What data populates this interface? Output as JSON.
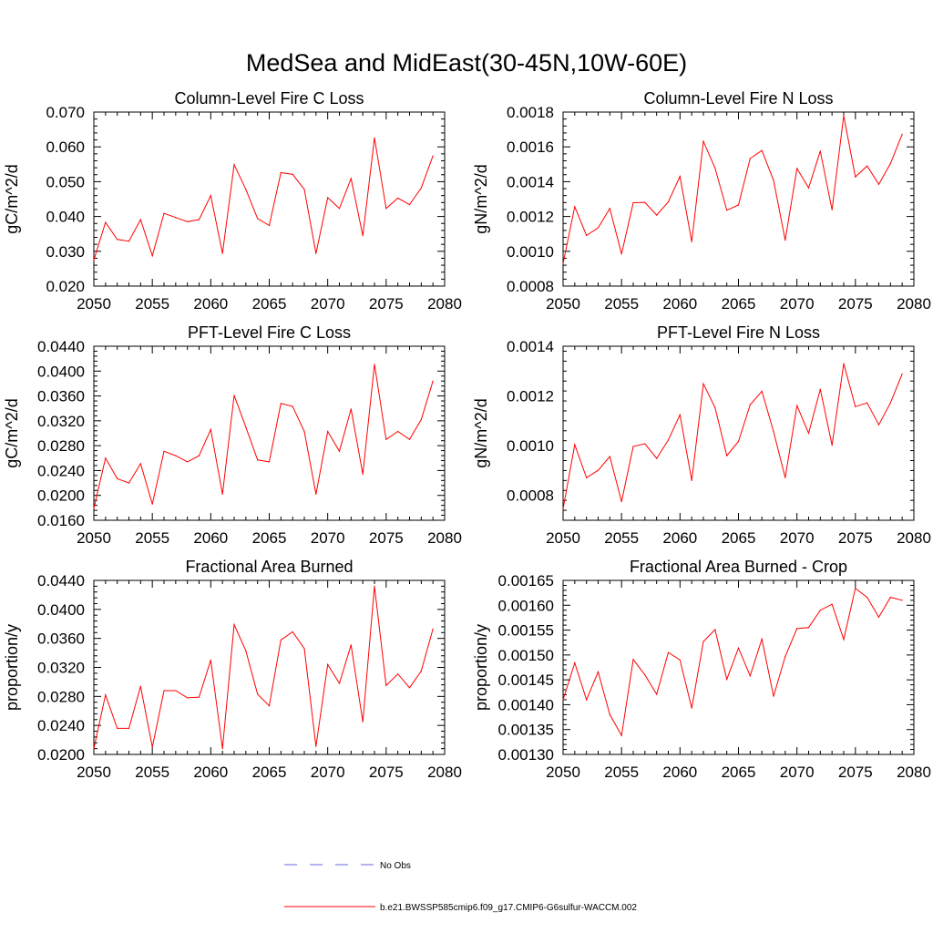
{
  "figure": {
    "title": "MedSea and MidEast(30-45N,10W-60E)"
  },
  "chart_data": [
    {
      "type": "line",
      "title": "Column-Level Fire C Loss",
      "ylabel": "gC/m^2/d",
      "xlabel": "",
      "xlim": [
        2050,
        2080
      ],
      "ylim": [
        0.02,
        0.07
      ],
      "xticks": [
        2050,
        2055,
        2060,
        2065,
        2070,
        2075,
        2080
      ],
      "xtick_labels": [
        "2050",
        "2055",
        "2060",
        "2065",
        "2070",
        "2075",
        "2080"
      ],
      "yticks": [
        0.02,
        0.03,
        0.04,
        0.05,
        0.06,
        0.07
      ],
      "ytick_labels": [
        "0.020",
        "0.030",
        "0.040",
        "0.050",
        "0.060",
        "0.070"
      ],
      "grid": false,
      "x": [
        2050,
        2051,
        2052,
        2053,
        2054,
        2055,
        2056,
        2057,
        2058,
        2059,
        2060,
        2061,
        2062,
        2063,
        2064,
        2065,
        2066,
        2067,
        2068,
        2069,
        2070,
        2071,
        2072,
        2073,
        2074,
        2075,
        2076,
        2077,
        2078,
        2079
      ],
      "series": [
        {
          "values": [
            0.0275,
            0.0383,
            0.0334,
            0.0329,
            0.0391,
            0.0287,
            0.0409,
            0.0397,
            0.0385,
            0.0391,
            0.046,
            0.0294,
            0.0549,
            0.0478,
            0.0394,
            0.0374,
            0.0526,
            0.0521,
            0.0478,
            0.0294,
            0.0454,
            0.0423,
            0.0509,
            0.0345,
            0.0626,
            0.0423,
            0.0453,
            0.0434,
            0.0482,
            0.0574
          ],
          "color": "#ff0000"
        }
      ]
    },
    {
      "type": "line",
      "title": "Column-Level Fire N Loss",
      "ylabel": "gN/m^2/d",
      "xlabel": "",
      "xlim": [
        2050,
        2080
      ],
      "ylim": [
        0.0008,
        0.0018
      ],
      "xticks": [
        2050,
        2055,
        2060,
        2065,
        2070,
        2075,
        2080
      ],
      "xtick_labels": [
        "2050",
        "2055",
        "2060",
        "2065",
        "2070",
        "2075",
        "2080"
      ],
      "yticks": [
        0.0008,
        0.001,
        0.0012,
        0.0014,
        0.0016,
        0.0018
      ],
      "ytick_labels": [
        "0.0008",
        "0.0010",
        "0.0012",
        "0.0014",
        "0.0016",
        "0.0018"
      ],
      "grid": false,
      "x": [
        2050,
        2051,
        2052,
        2053,
        2054,
        2055,
        2056,
        2057,
        2058,
        2059,
        2060,
        2061,
        2062,
        2063,
        2064,
        2065,
        2066,
        2067,
        2068,
        2069,
        2070,
        2071,
        2072,
        2073,
        2074,
        2075,
        2076,
        2077,
        2078,
        2079
      ],
      "series": [
        {
          "values": [
            0.00093,
            0.001256,
            0.001091,
            0.001135,
            0.001246,
            0.000985,
            0.001279,
            0.001281,
            0.001208,
            0.001284,
            0.001431,
            0.001055,
            0.001632,
            0.001478,
            0.001236,
            0.001266,
            0.001533,
            0.001579,
            0.001408,
            0.001064,
            0.001476,
            0.001364,
            0.001576,
            0.001238,
            0.001779,
            0.001428,
            0.00149,
            0.001385,
            0.001504,
            0.001673
          ],
          "color": "#ff0000"
        }
      ]
    },
    {
      "type": "line",
      "title": "PFT-Level Fire C Loss",
      "ylabel": "gC/m^2/d",
      "xlabel": "",
      "xlim": [
        2050,
        2080
      ],
      "ylim": [
        0.016,
        0.044
      ],
      "xticks": [
        2050,
        2055,
        2060,
        2065,
        2070,
        2075,
        2080
      ],
      "xtick_labels": [
        "2050",
        "2055",
        "2060",
        "2065",
        "2070",
        "2075",
        "2080"
      ],
      "yticks": [
        0.016,
        0.02,
        0.024,
        0.028,
        0.032,
        0.036,
        0.04,
        0.044
      ],
      "ytick_labels": [
        "0.0160",
        "0.0200",
        "0.0240",
        "0.0280",
        "0.0320",
        "0.0360",
        "0.0400",
        "0.0440"
      ],
      "grid": false,
      "x": [
        2050,
        2051,
        2052,
        2053,
        2054,
        2055,
        2056,
        2057,
        2058,
        2059,
        2060,
        2061,
        2062,
        2063,
        2064,
        2065,
        2066,
        2067,
        2068,
        2069,
        2070,
        2071,
        2072,
        2073,
        2074,
        2075,
        2076,
        2077,
        2078,
        2079
      ],
      "series": [
        {
          "values": [
            0.0179,
            0.026,
            0.0227,
            0.022,
            0.0251,
            0.0186,
            0.0271,
            0.0264,
            0.0254,
            0.0264,
            0.0306,
            0.0202,
            0.0361,
            0.031,
            0.0257,
            0.0254,
            0.0348,
            0.0343,
            0.0303,
            0.0202,
            0.0303,
            0.0271,
            0.0339,
            0.0234,
            0.0411,
            0.029,
            0.0303,
            0.029,
            0.0322,
            0.0384
          ],
          "color": "#ff0000"
        }
      ]
    },
    {
      "type": "line",
      "title": "PFT-Level Fire N Loss",
      "ylabel": "gN/m^2/d",
      "xlabel": "",
      "xlim": [
        2050,
        2080
      ],
      "ylim": [
        0.0007,
        0.0014
      ],
      "xticks": [
        2050,
        2055,
        2060,
        2065,
        2070,
        2075,
        2080
      ],
      "xtick_labels": [
        "2050",
        "2055",
        "2060",
        "2065",
        "2070",
        "2075",
        "2080"
      ],
      "yticks": [
        0.0008,
        0.001,
        0.0012,
        0.0014
      ],
      "ytick_labels": [
        "0.0008",
        "0.0010",
        "0.0012",
        "0.0014"
      ],
      "grid": false,
      "x": [
        2050,
        2051,
        2052,
        2053,
        2054,
        2055,
        2056,
        2057,
        2058,
        2059,
        2060,
        2061,
        2062,
        2063,
        2064,
        2065,
        2066,
        2067,
        2068,
        2069,
        2070,
        2071,
        2072,
        2073,
        2074,
        2075,
        2076,
        2077,
        2078,
        2079
      ],
      "series": [
        {
          "values": [
            0.000745,
            0.001004,
            0.000871,
            0.000901,
            0.000956,
            0.000775,
            0.000997,
            0.001008,
            0.000949,
            0.001023,
            0.001124,
            0.00086,
            0.001249,
            0.001153,
            0.00096,
            0.001017,
            0.001164,
            0.001219,
            0.001057,
            0.000871,
            0.001161,
            0.00105,
            0.001227,
            0.001002,
            0.00133,
            0.001157,
            0.001172,
            0.001084,
            0.001172,
            0.001289
          ],
          "color": "#ff0000"
        }
      ]
    },
    {
      "type": "line",
      "title": "Fractional Area Burned",
      "ylabel": "proportion/y",
      "xlabel": "",
      "xlim": [
        2050,
        2080
      ],
      "ylim": [
        0.02,
        0.044
      ],
      "xticks": [
        2050,
        2055,
        2060,
        2065,
        2070,
        2075,
        2080
      ],
      "xtick_labels": [
        "2050",
        "2055",
        "2060",
        "2065",
        "2070",
        "2075",
        "2080"
      ],
      "yticks": [
        0.02,
        0.024,
        0.028,
        0.032,
        0.036,
        0.04,
        0.044
      ],
      "ytick_labels": [
        "0.0200",
        "0.0240",
        "0.0280",
        "0.0320",
        "0.0360",
        "0.0400",
        "0.0440"
      ],
      "grid": false,
      "x": [
        2050,
        2051,
        2052,
        2053,
        2054,
        2055,
        2056,
        2057,
        2058,
        2059,
        2060,
        2061,
        2062,
        2063,
        2064,
        2065,
        2066,
        2067,
        2068,
        2069,
        2070,
        2071,
        2072,
        2073,
        2074,
        2075,
        2076,
        2077,
        2078,
        2079
      ],
      "series": [
        {
          "values": [
            0.0208,
            0.0282,
            0.0236,
            0.0236,
            0.0294,
            0.021,
            0.0288,
            0.0288,
            0.0278,
            0.0279,
            0.033,
            0.0208,
            0.0379,
            0.0343,
            0.0283,
            0.0267,
            0.0358,
            0.0369,
            0.0346,
            0.0211,
            0.0324,
            0.0298,
            0.0351,
            0.0245,
            0.0432,
            0.0295,
            0.0311,
            0.0292,
            0.0315,
            0.0373
          ],
          "color": "#ff0000"
        }
      ]
    },
    {
      "type": "line",
      "title": "Fractional Area Burned - Crop",
      "ylabel": "proportion/y",
      "xlabel": "",
      "xlim": [
        2050,
        2080
      ],
      "ylim": [
        0.0013,
        0.00165
      ],
      "xticks": [
        2050,
        2055,
        2060,
        2065,
        2070,
        2075,
        2080
      ],
      "xtick_labels": [
        "2050",
        "2055",
        "2060",
        "2065",
        "2070",
        "2075",
        "2080"
      ],
      "yticks": [
        0.0013,
        0.00135,
        0.0014,
        0.00145,
        0.0015,
        0.00155,
        0.0016,
        0.00165
      ],
      "ytick_labels": [
        "0.00130",
        "0.00135",
        "0.00140",
        "0.00145",
        "0.00150",
        "0.00155",
        "0.00160",
        "0.00165"
      ],
      "grid": false,
      "x": [
        2050,
        2051,
        2052,
        2053,
        2054,
        2055,
        2056,
        2057,
        2058,
        2059,
        2060,
        2061,
        2062,
        2063,
        2064,
        2065,
        2066,
        2067,
        2068,
        2069,
        2070,
        2071,
        2072,
        2073,
        2074,
        2075,
        2076,
        2077,
        2078,
        2079
      ],
      "series": [
        {
          "values": [
            0.00141,
            0.001484,
            0.00141,
            0.001466,
            0.00138,
            0.001338,
            0.001491,
            0.00146,
            0.001421,
            0.001505,
            0.00149,
            0.001393,
            0.001527,
            0.001551,
            0.001451,
            0.001514,
            0.001458,
            0.001532,
            0.001417,
            0.001497,
            0.001553,
            0.001555,
            0.00159,
            0.001602,
            0.001531,
            0.001634,
            0.001616,
            0.001576,
            0.001616,
            0.00161
          ],
          "color": "#ff0000"
        }
      ]
    }
  ],
  "legend": {
    "placement": "bottom-center",
    "items": [
      {
        "label": "No Obs",
        "color": "#6a6ad8",
        "style": "dashed"
      },
      {
        "label": "b.e21.BWSSP585cmip6.f09_g17.CMIP6-G6sulfur-WACCM.002",
        "color": "#ff0000",
        "style": "solid"
      }
    ]
  }
}
